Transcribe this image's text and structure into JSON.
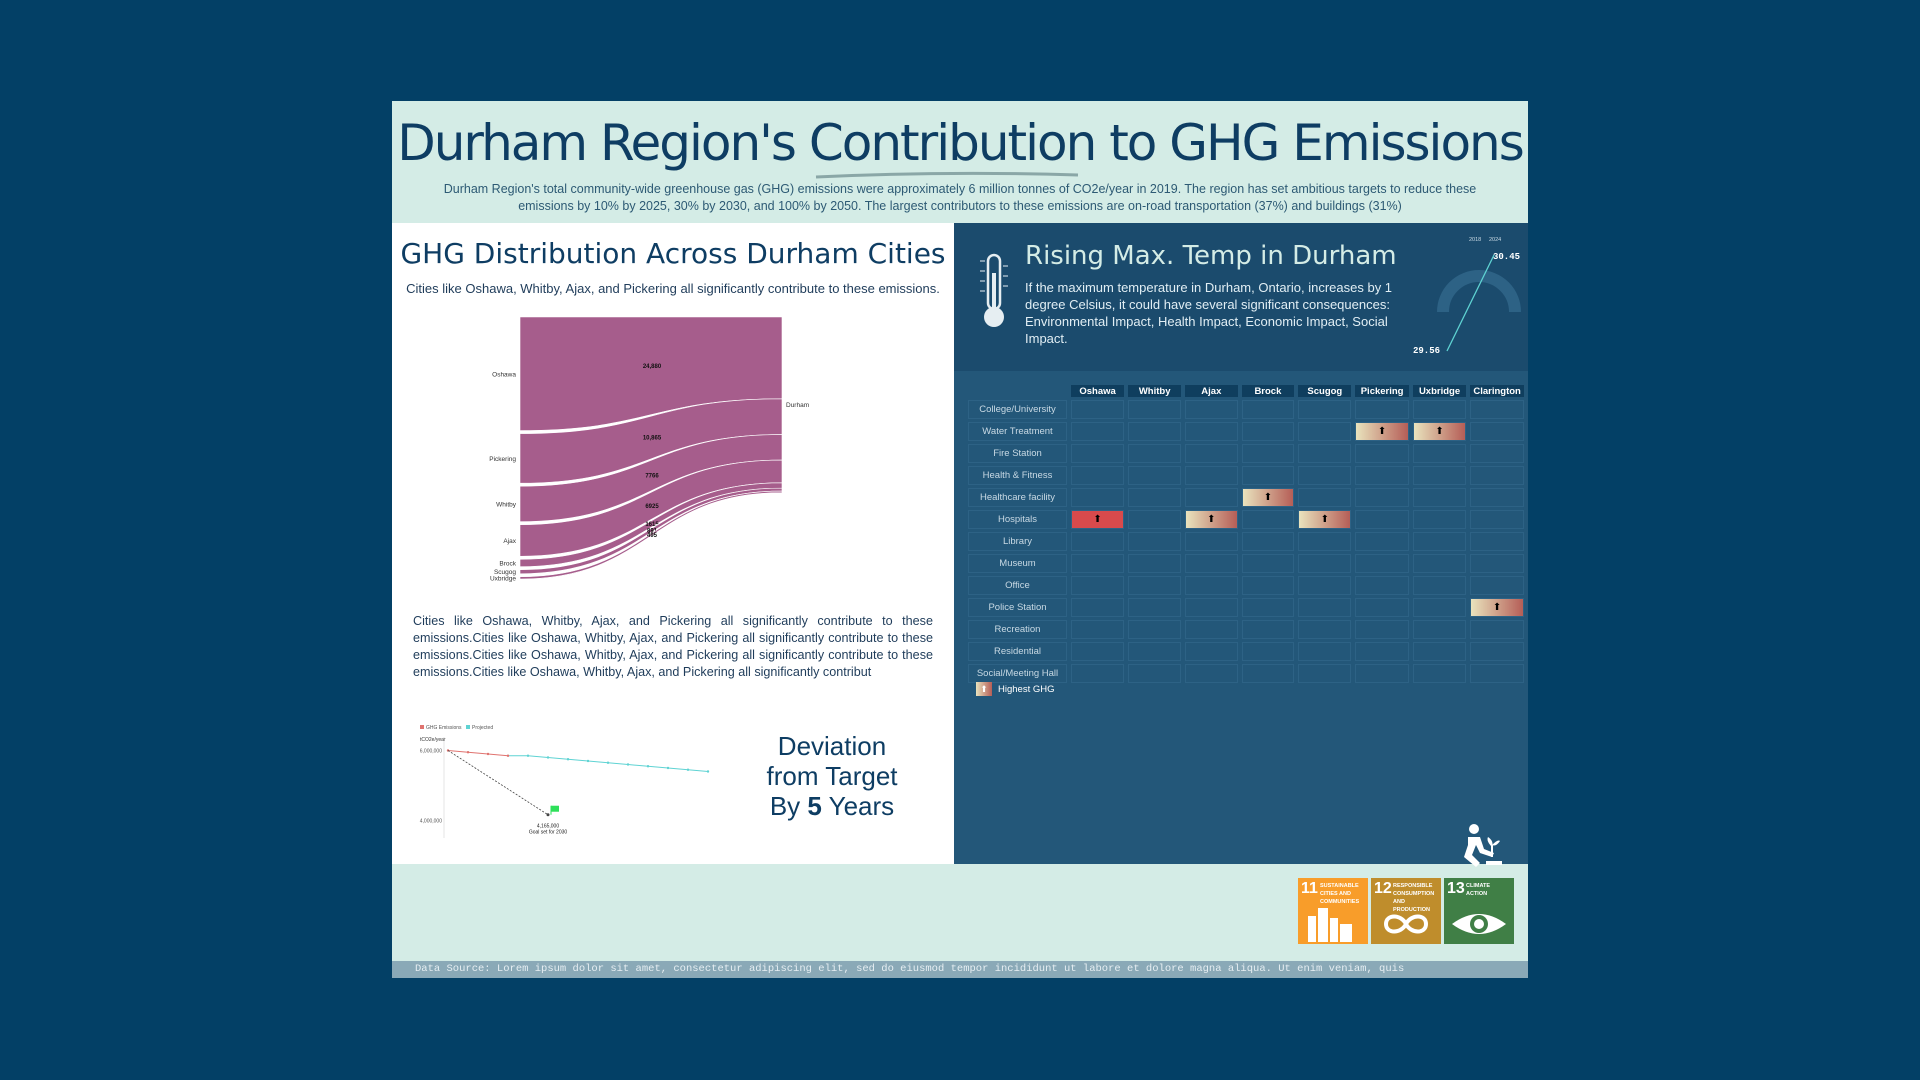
{
  "header": {
    "title": "Durham Region's Contribution to GHG Emissions",
    "subtitle": "Durham Region's total community-wide greenhouse gas (GHG) emissions were approximately 6 million tonnes of CO2e/year in 2019. The region has set ambitious targets to reduce these emissions by 10% by 2025, 30% by 2030, and 100% by 2050. The largest contributors to these emissions are on-road transportation (37%) and buildings (31%)"
  },
  "left": {
    "title": "GHG Distribution Across Durham Cities",
    "subtitle": "Cities like Oshawa, Whitby, Ajax, and Pickering all significantly contribute to these emissions.",
    "paragraph": "Cities like Oshawa, Whitby, Ajax, and Pickering all significantly contribute to these emissions.Cities like Oshawa, Whitby, Ajax, and Pickering all significantly contribute to these emissions.Cities like Oshawa, Whitby, Ajax, and Pickering all significantly contribute to these emissions.Cities like Oshawa, Whitby, Ajax, and Pickering all significantly contribut",
    "deviation_line1": "Deviation",
    "deviation_line2": "from Target",
    "deviation_prefix": "By ",
    "deviation_number": "5",
    "deviation_suffix": " Years"
  },
  "chart_data": [
    {
      "type": "sankey",
      "target": "Durham",
      "sources": [
        "Oshawa",
        "Pickering",
        "Whitby",
        "Ajax",
        "Brock",
        "Scugog",
        "Uxbridge"
      ],
      "values": [
        24880,
        10865,
        7766,
        6925,
        1615,
        891,
        495
      ],
      "value_labels": [
        "24,880",
        "10,865",
        "7766",
        "6925",
        "1615",
        "891",
        "495"
      ],
      "color": "#a65d8c"
    },
    {
      "type": "line",
      "legend": [
        "GHG Emissions",
        "Projected"
      ],
      "colors": [
        "#e0736f",
        "#5fd3d3"
      ],
      "ylabel": "tCO2e/year",
      "y_ticks": [
        "6,000,000",
        "4,000,000"
      ],
      "ylim": [
        3500000,
        6500000
      ],
      "ghg_emissions": [
        6000000,
        5950000,
        5900000,
        5850000
      ],
      "projected": [
        5850000,
        5800000,
        5750000,
        5700000,
        5650000,
        5600000,
        5550000,
        5500000,
        5450000,
        5400000
      ],
      "goal_value": 4165000,
      "goal_label": "4,165,000",
      "goal_caption": "Goal set for 2030"
    },
    {
      "type": "gauge",
      "years": [
        "2018",
        "2024"
      ],
      "values": [
        29.56,
        30.45
      ],
      "value_labels": [
        "29.56",
        "30.45"
      ]
    }
  ],
  "right": {
    "title": "Rising Max. Temp in Durham",
    "text": "If the maximum temperature in Durham, Ontario, increases by 1 degree Celsius, it could have several significant consequences: Environmental Impact, Health Impact, Economic Impact, Social Impact.",
    "cities": [
      "Oshawa",
      "Whitby",
      "Ajax",
      "Brock",
      "Scugog",
      "Pickering",
      "Uxbridge",
      "Clarington"
    ],
    "facilities": [
      {
        "label": "College/University",
        "highlights": []
      },
      {
        "label": "Water Treatment",
        "highlights": [
          5,
          6
        ]
      },
      {
        "label": "Fire Station",
        "highlights": []
      },
      {
        "label": "Health & Fitness",
        "highlights": []
      },
      {
        "label": "Healthcare facility",
        "highlights": [
          3
        ]
      },
      {
        "label": "Hospitals",
        "highlights": [
          0,
          2,
          4
        ]
      },
      {
        "label": "Library",
        "highlights": []
      },
      {
        "label": "Museum",
        "highlights": []
      },
      {
        "label": "Office",
        "highlights": []
      },
      {
        "label": "Police Station",
        "highlights": [
          7
        ]
      },
      {
        "label": "Recreation",
        "highlights": []
      },
      {
        "label": "Residential",
        "highlights": []
      },
      {
        "label": "Social/Meeting Hall",
        "highlights": []
      }
    ],
    "red_highlight": {
      "row": 5,
      "col": 0
    },
    "marker": "⬆",
    "legend_label": "Highest GHG"
  },
  "sdg": [
    {
      "num": "11",
      "label": "SUSTAINABLE CITIES AND COMMUNITIES",
      "color": "#f89d2a",
      "icon": "city-icon"
    },
    {
      "num": "12",
      "label": "RESPONSIBLE CONSUMPTION AND PRODUCTION",
      "color": "#bf8d2c",
      "icon": "infinity-icon"
    },
    {
      "num": "13",
      "label": "CLIMATE ACTION",
      "color": "#407f46",
      "icon": "eye-globe-icon"
    }
  ],
  "footer": {
    "source": "Data Source: Lorem ipsum dolor sit amet, consectetur adipiscing elit, sed do eiusmod tempor incididunt ut labore et dolore magna aliqua. Ut enim veniam, quis"
  }
}
